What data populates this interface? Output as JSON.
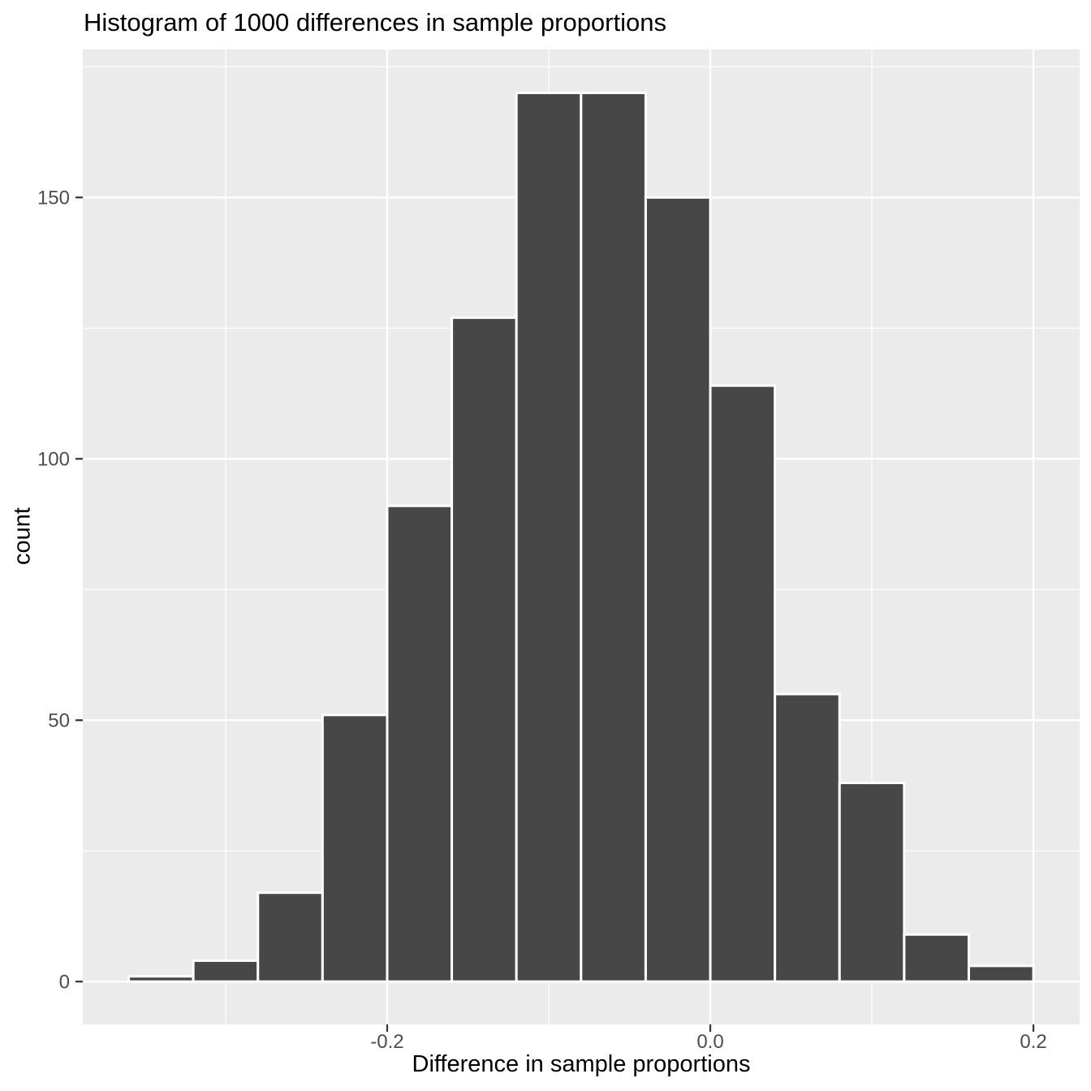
{
  "title": "Histogram of 1000 differences in sample proportions",
  "chart_data": {
    "type": "bar",
    "subtype": "histogram",
    "title": "Histogram of 1000 differences in sample proportions",
    "xlabel": "Difference in sample proportions",
    "ylabel": "count",
    "total_count": 1000,
    "bin_width": 0.04,
    "bins": [
      {
        "x0": -0.36,
        "x1": -0.32,
        "count": 1
      },
      {
        "x0": -0.32,
        "x1": -0.28,
        "count": 4
      },
      {
        "x0": -0.28,
        "x1": -0.24,
        "count": 17
      },
      {
        "x0": -0.24,
        "x1": -0.2,
        "count": 51
      },
      {
        "x0": -0.2,
        "x1": -0.16,
        "count": 91
      },
      {
        "x0": -0.16,
        "x1": -0.12,
        "count": 127
      },
      {
        "x0": -0.12,
        "x1": -0.08,
        "count": 170
      },
      {
        "x0": -0.08,
        "x1": -0.04,
        "count": 170
      },
      {
        "x0": -0.04,
        "x1": 0.0,
        "count": 150
      },
      {
        "x0": 0.0,
        "x1": 0.04,
        "count": 114
      },
      {
        "x0": 0.04,
        "x1": 0.08,
        "count": 55
      },
      {
        "x0": 0.08,
        "x1": 0.12,
        "count": 38
      },
      {
        "x0": 0.12,
        "x1": 0.16,
        "count": 9
      },
      {
        "x0": 0.16,
        "x1": 0.2,
        "count": 3
      }
    ],
    "x_ticks": [
      {
        "value": -0.2,
        "label": "-0.2"
      },
      {
        "value": 0.0,
        "label": "0.0"
      },
      {
        "value": 0.2,
        "label": "0.2"
      }
    ],
    "y_ticks": [
      {
        "value": 0,
        "label": "0"
      },
      {
        "value": 50,
        "label": "50"
      },
      {
        "value": 100,
        "label": "100"
      },
      {
        "value": 150,
        "label": "150"
      }
    ],
    "x_minor_ticks": [
      -0.3,
      -0.1,
      0.1
    ],
    "y_minor_ticks": [
      25,
      75,
      125,
      175
    ],
    "xlim": [
      -0.3884,
      0.2286
    ],
    "ylim": [
      -8.2,
      178.3
    ],
    "grid": true,
    "legend": "none",
    "colors": {
      "bar_fill": "#474747",
      "bar_border": "#FFFFFF",
      "panel_background": "#EBEBEB",
      "grid_line": "#FFFFFF",
      "axis_text": "#4D4D4D",
      "axis_title": "#000000",
      "tick_mark": "#333333",
      "plot_background": "#FFFFFF"
    }
  }
}
